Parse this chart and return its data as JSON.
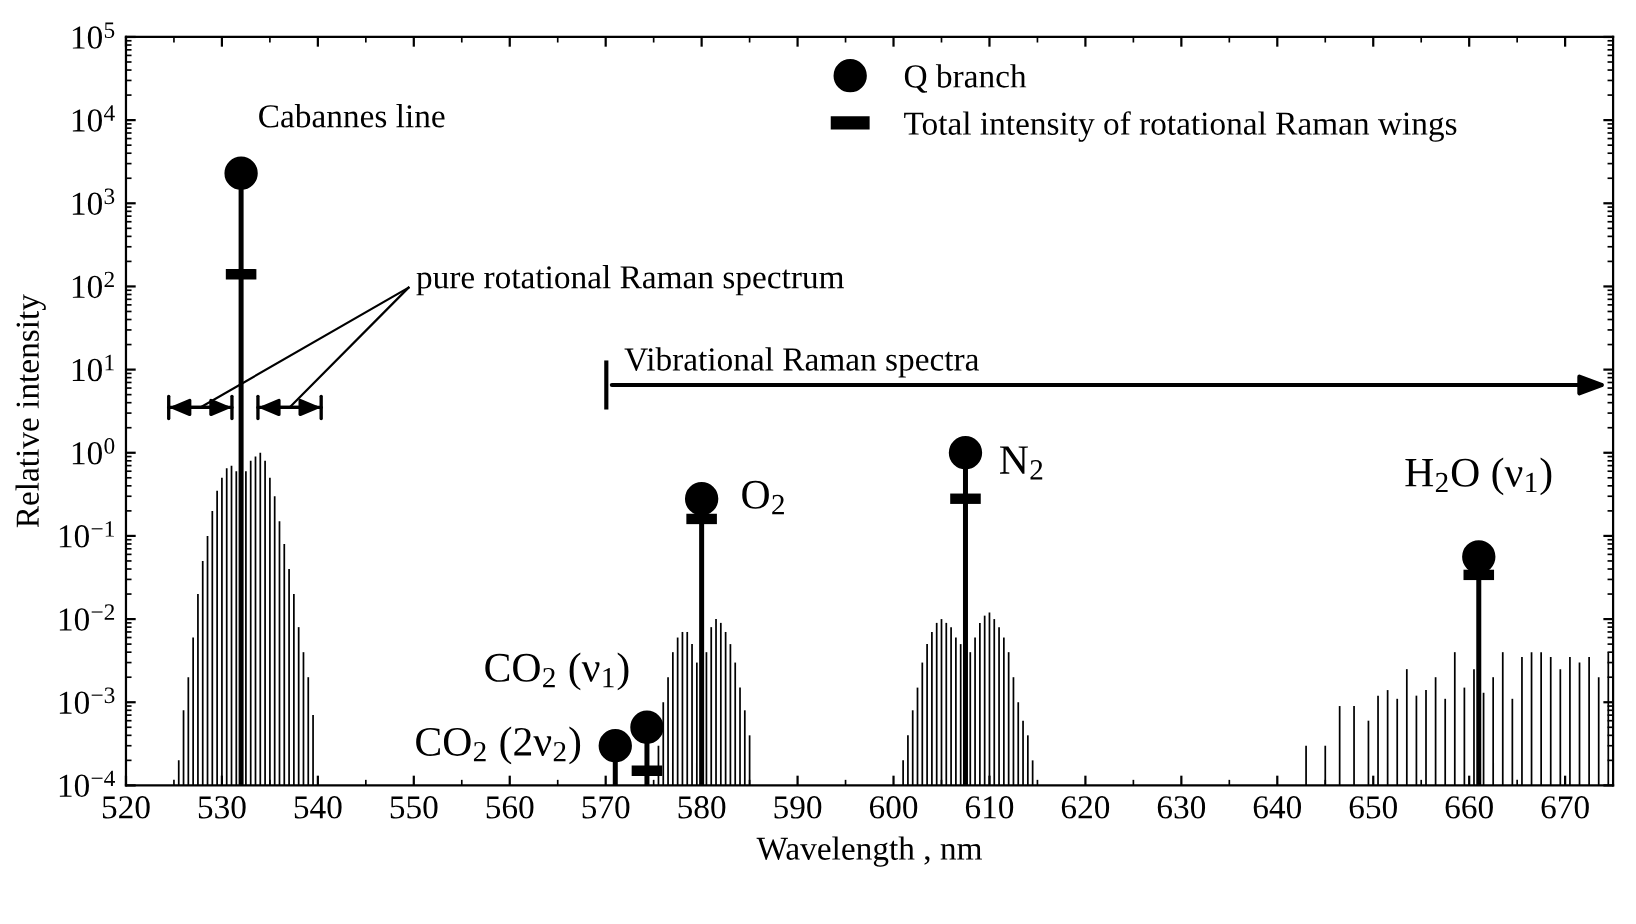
{
  "chart_data": {
    "type": "bar",
    "xlabel": "Wavelength , nm",
    "ylabel": "Relative intensity",
    "log": "y",
    "xlim": [
      520,
      675
    ],
    "xticks": [
      520,
      530,
      540,
      550,
      560,
      570,
      580,
      590,
      600,
      610,
      620,
      630,
      640,
      650,
      660,
      670
    ],
    "ylim": [
      0.0001,
      100000
    ],
    "yticks": [
      {
        "value": 0.0001,
        "label": "10$^{−4}$"
      },
      {
        "value": 0.001,
        "label": "10$^{−3}$"
      },
      {
        "value": 0.01,
        "label": "10$^{−2}$"
      },
      {
        "value": 0.1,
        "label": "10$^{−1}$"
      },
      {
        "value": 1,
        "label": "10$^{0}$"
      },
      {
        "value": 10,
        "label": "10$^{1}$"
      },
      {
        "value": 100,
        "label": "10$^{2}$"
      },
      {
        "value": 1000,
        "label": "10$^{3}$"
      },
      {
        "value": 10000,
        "label": "10$^{4}$"
      },
      {
        "value": 100000,
        "label": "10$^{5}$"
      }
    ],
    "grid": false,
    "legend": "top",
    "series": [
      {
        "color": "#000000",
        "x": [
          525.5,
          526,
          526.5,
          527,
          527.5,
          528,
          528.5,
          529,
          529.5,
          530,
          530.5,
          531,
          531.5,
          532.5,
          533,
          533.5,
          534,
          534.5,
          535,
          535.5,
          536,
          536.5,
          537,
          537.5,
          538,
          538.5,
          539,
          539.5,
          575.5,
          576,
          576.5,
          577,
          577.5,
          578,
          578.5,
          579,
          579.5,
          580.5,
          581,
          581.5,
          582,
          582.5,
          583,
          583.5,
          584,
          584.5,
          585,
          601,
          601.5,
          602,
          602.5,
          603,
          603.5,
          604,
          604.5,
          605,
          605.5,
          606,
          606.5,
          607,
          608,
          608.5,
          609,
          609.5,
          610,
          610.5,
          611,
          611.5,
          612,
          612.5,
          613,
          613.5,
          614,
          614.5,
          643,
          645,
          646.5,
          648,
          649.5,
          650.5,
          651.5,
          652.5,
          653.5,
          654.5,
          655.5,
          656.5,
          657.5,
          658.5,
          659.5,
          660.5,
          661.5,
          662.5,
          663.5,
          664.5,
          665.5,
          666.5,
          667.5,
          668.5,
          669.5,
          670.5,
          671.5,
          672.5,
          673.5,
          674.5
        ],
        "values": [
          0.0002,
          0.0008,
          0.002,
          0.006,
          0.02,
          0.05,
          0.1,
          0.2,
          0.35,
          0.5,
          0.65,
          0.7,
          0.6,
          0.6,
          0.8,
          0.9,
          1.0,
          0.8,
          0.5,
          0.3,
          0.15,
          0.08,
          0.04,
          0.02,
          0.008,
          0.004,
          0.002,
          0.0007,
          0.0003,
          0.001,
          0.002,
          0.004,
          0.006,
          0.007,
          0.007,
          0.005,
          0.003,
          0.004,
          0.008,
          0.01,
          0.009,
          0.007,
          0.005,
          0.003,
          0.0015,
          0.0008,
          0.0004,
          0.0002,
          0.0004,
          0.0008,
          0.0015,
          0.003,
          0.005,
          0.007,
          0.009,
          0.01,
          0.009,
          0.008,
          0.006,
          0.005,
          0.004,
          0.006,
          0.009,
          0.011,
          0.012,
          0.01,
          0.008,
          0.006,
          0.004,
          0.002,
          0.001,
          0.0006,
          0.0004,
          0.0002,
          0.0003,
          0.0003,
          0.0009,
          0.0009,
          0.0006,
          0.0012,
          0.0014,
          0.0011,
          0.0025,
          0.0012,
          0.0014,
          0.002,
          0.0011,
          0.004,
          0.0015,
          0.0025,
          0.0013,
          0.002,
          0.004,
          0.0011,
          0.0035,
          0.004,
          0.004,
          0.0035,
          0.0025,
          0.0035,
          0.003,
          0.0035,
          0.002,
          0.004
        ]
      },
      {
        "type": "lollipop",
        "name": "Q branch",
        "color": "#000000",
        "marker": "circle",
        "x": [
          532,
          571,
          574.3,
          580,
          607.5,
          661
        ],
        "values": [
          2300,
          0.0003,
          0.0005,
          0.28,
          1.0,
          0.056
        ]
      },
      {
        "type": "scatter",
        "name": "Total intensity of rotational Raman wings",
        "color": "#000000",
        "x": [
          532,
          574.3,
          580,
          607.5,
          661
        ],
        "values": [
          140,
          0.00015,
          0.16,
          0.28,
          0.034
        ]
      }
    ],
    "annotations": [
      {
        "text": "Cabannes line",
        "x": 532,
        "y": 2300
      },
      "pure rotational Raman spectrum",
      "Vibrational Raman spectra",
      {
        "text": "O$_{2}$",
        "x": 580,
        "y": 0.28
      },
      {
        "text": "N$_{2}$",
        "x": 607.5,
        "y": 1.0
      },
      {
        "text": "H$_{2}$O (ν$_{1}$)",
        "x": 661,
        "y": 0.056
      },
      {
        "text": "CO$_{2}$ (ν$_{1}$)",
        "x": 574.3,
        "y": 0.0005
      },
      {
        "text": "CO$_{2}$ (2ν$_{2}$)",
        "x": 571,
        "y": 0.0003
      }
    ]
  }
}
